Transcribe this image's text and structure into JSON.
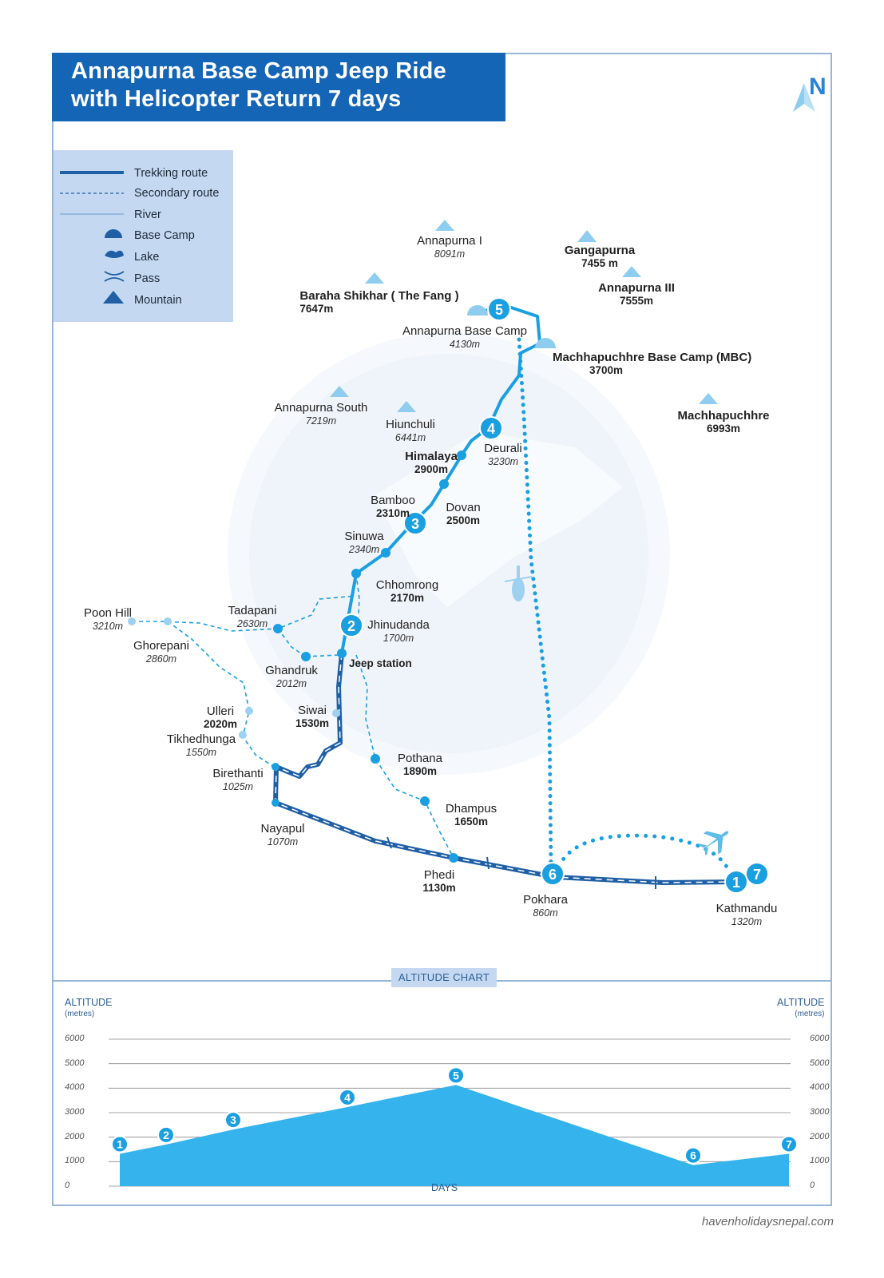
{
  "title": {
    "line1": "Annapurna Base Camp Jeep Ride",
    "line2": "with Helicopter Return 7 days"
  },
  "north_label": "N",
  "legend": [
    {
      "icon": "trekking-route-line",
      "label": "Trekking route"
    },
    {
      "icon": "secondary-route-dashed-line",
      "label": "Secondary route"
    },
    {
      "icon": "river-line",
      "label": "River"
    },
    {
      "icon": "base-camp-icon",
      "label": "Base Camp"
    },
    {
      "icon": "lake-icon",
      "label": "Lake"
    },
    {
      "icon": "pass-icon",
      "label": "Pass"
    },
    {
      "icon": "mountain-icon",
      "label": "Mountain"
    }
  ],
  "mountains": {
    "annapurna_i": {
      "name": "Annapurna I",
      "alt": "8091m"
    },
    "gangapurna": {
      "name": "Gangapurna",
      "alt": "7455 m"
    },
    "annapurna_iii": {
      "name": "Annapurna III",
      "alt": "7555m"
    },
    "baraha": {
      "name": "Baraha Shikhar ( The Fang )",
      "alt": "7647m"
    },
    "annapurna_south": {
      "name": "Annapurna South",
      "alt": "7219m"
    },
    "hiunchuli": {
      "name": "Hiunchuli",
      "alt": "6441m"
    },
    "machhapuchhre": {
      "name": "Machhapuchhre",
      "alt": "6993m"
    }
  },
  "places": {
    "abc": {
      "name": "Annapurna Base Camp",
      "alt": "4130m"
    },
    "mbc": {
      "name": "Machhapuchhre Base Camp (MBC)",
      "alt": "3700m"
    },
    "deurali": {
      "name": "Deurali",
      "alt": "3230m"
    },
    "himalaya": {
      "name": "Himalaya",
      "alt": "2900m"
    },
    "dovan": {
      "name": "Dovan",
      "alt": "2500m"
    },
    "bamboo": {
      "name": "Bamboo",
      "alt": "2310m"
    },
    "sinuwa": {
      "name": "Sinuwa",
      "alt": "2340m"
    },
    "chhomrong": {
      "name": "Chhomrong",
      "alt": "2170m"
    },
    "jhinudanda": {
      "name": "Jhinudanda",
      "alt": "1700m"
    },
    "jeep_station": {
      "name": "Jeep station"
    },
    "poon_hill": {
      "name": "Poon Hill",
      "alt": "3210m"
    },
    "tadapani": {
      "name": "Tadapani",
      "alt": "2630m"
    },
    "ghorepani": {
      "name": "Ghorepani",
      "alt": "2860m"
    },
    "ghandruk": {
      "name": "Ghandruk",
      "alt": "2012m"
    },
    "siwai": {
      "name": "Siwai",
      "alt": "1530m"
    },
    "ulleri": {
      "name": "Ulleri",
      "alt": "2020m"
    },
    "tikhedhunga": {
      "name": "Tikhedhunga",
      "alt": "1550m"
    },
    "birethanti": {
      "name": "Birethanti",
      "alt": "1025m"
    },
    "pothana": {
      "name": "Pothana",
      "alt": "1890m"
    },
    "dhampus": {
      "name": "Dhampus",
      "alt": "1650m"
    },
    "nayapul": {
      "name": "Nayapul",
      "alt": "1070m"
    },
    "phedi": {
      "name": "Phedi",
      "alt": "1130m"
    },
    "pokhara": {
      "name": "Pokhara",
      "alt": "860m"
    },
    "kathmandu": {
      "name": "Kathmandu",
      "alt": "1320m"
    }
  },
  "day_markers": [
    "1",
    "2",
    "3",
    "4",
    "5",
    "6",
    "7"
  ],
  "altitude_chart": {
    "tag": "ALTITUDE CHART",
    "left_title": "ALTITUDE",
    "left_unit": "(metres)",
    "right_title": "ALTITUDE",
    "right_unit": "(metres)",
    "xlabel": "DAYS",
    "ticks": [
      "6000",
      "5000",
      "4000",
      "3000",
      "2000",
      "1000",
      "0"
    ]
  },
  "chart_data": {
    "type": "area",
    "x": [
      "1",
      "2",
      "3",
      "4",
      "5",
      "6",
      "7"
    ],
    "values": [
      1320,
      1700,
      2310,
      3230,
      4130,
      860,
      1320
    ],
    "ylim": [
      0,
      6000
    ],
    "xlabel": "DAYS",
    "ylabel": "ALTITUDE",
    "grid": true
  },
  "colors": {
    "title_bg": "#1565b7",
    "route": "#1a9fe0",
    "road": "#1f5fa6",
    "legend_bg": "#c4d9f1",
    "chart_fill": "#35b3ec"
  },
  "website": "havenholidaysnepal.com"
}
